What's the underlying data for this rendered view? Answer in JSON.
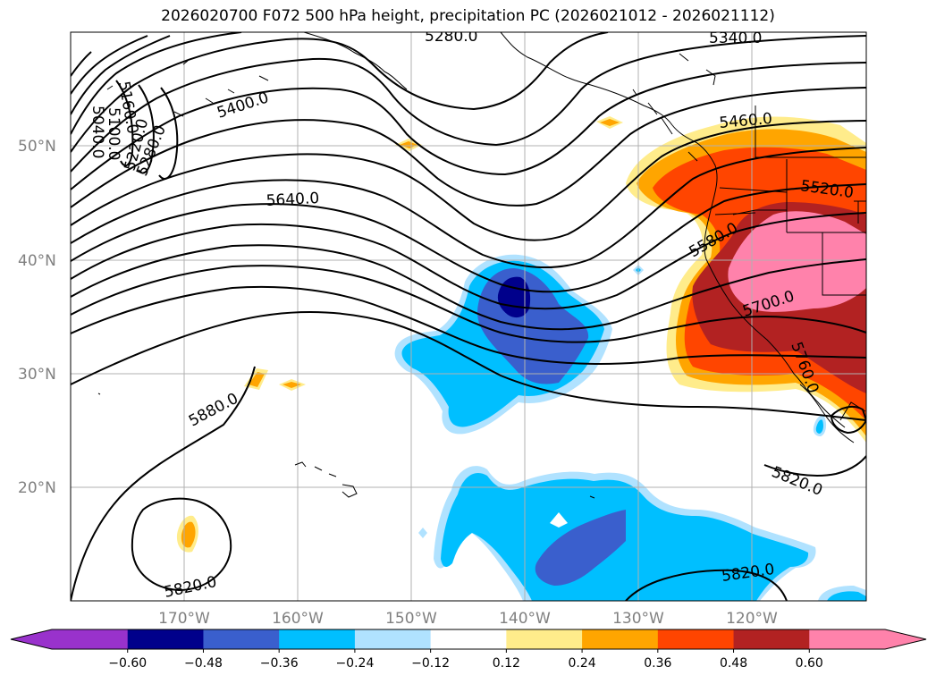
{
  "title": "2026020700 F072 500 hPa height, precipitation PC (2026021012 - 2026021112)",
  "lat_labels": [
    "50°N",
    "40°N",
    "30°N",
    "20°N"
  ],
  "lon_labels": [
    "170°W",
    "160°W",
    "150°W",
    "140°W",
    "130°W",
    "120°W"
  ],
  "contour_labels": [
    "5280.0",
    "5340.0",
    "5400.0",
    "5160.0",
    "5100.0",
    "5040.0",
    "5220.0",
    "5280.0",
    "5460.0",
    "5520.0",
    "5640.0",
    "5580.0",
    "5700.0",
    "5760.0",
    "5880.0",
    "5820.0",
    "5820.0",
    "5820.0"
  ],
  "colorbar": {
    "tick_labels": [
      "−0.60",
      "−0.48",
      "−0.36",
      "−0.24",
      "−0.12",
      "0.12",
      "0.24",
      "0.36",
      "0.48",
      "0.60"
    ],
    "colors": [
      "#9932cc",
      "#00008b",
      "#3a5fcd",
      "#00bfff",
      "#b0e2ff",
      "#ffffff",
      "#ffec8b",
      "#ffa500",
      "#ff4500",
      "#b22222",
      "#ff82ab",
      "#ff82ab"
    ]
  },
  "colors": {
    "neg_strong": "#00008b",
    "neg_mid": "#3a5fcd",
    "neg": "#00bfff",
    "neg_weak": "#b0e2ff",
    "pos_weak": "#ffec8b",
    "pos": "#ffa500",
    "pos_mid": "#ff4500",
    "pos_strong": "#b22222",
    "pos_max": "#ff82ab"
  }
}
